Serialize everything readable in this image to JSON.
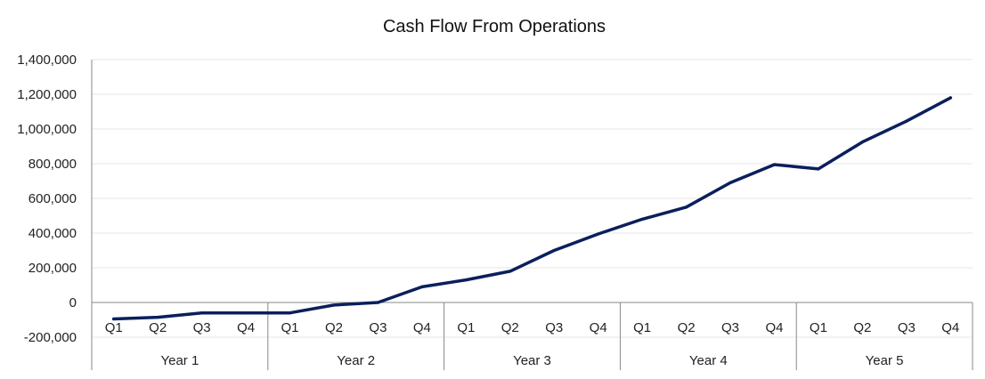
{
  "chart_data": {
    "type": "line",
    "title": "Cash Flow From Operations",
    "xlabel": "",
    "ylabel": "",
    "ylim": [
      -200000,
      1400000
    ],
    "yticks": [
      -200000,
      0,
      200000,
      400000,
      600000,
      800000,
      1000000,
      1200000,
      1400000
    ],
    "ytick_labels": [
      "-200,000",
      "0",
      "200,000",
      "400,000",
      "600,000",
      "800,000",
      "1,000,000",
      "1,200,000",
      "1,400,000"
    ],
    "groups": [
      {
        "label": "Year 1",
        "categories": [
          "Q1",
          "Q2",
          "Q3",
          "Q4"
        ]
      },
      {
        "label": "Year 2",
        "categories": [
          "Q1",
          "Q2",
          "Q3",
          "Q4"
        ]
      },
      {
        "label": "Year 3",
        "categories": [
          "Q1",
          "Q2",
          "Q3",
          "Q4"
        ]
      },
      {
        "label": "Year 4",
        "categories": [
          "Q1",
          "Q2",
          "Q3",
          "Q4"
        ]
      },
      {
        "label": "Year 5",
        "categories": [
          "Q1",
          "Q2",
          "Q3",
          "Q4"
        ]
      }
    ],
    "series": [
      {
        "color": "#0b1f5c",
        "values": [
          -95000,
          -85000,
          -60000,
          -60000,
          -60000,
          -15000,
          0,
          90000,
          130000,
          180000,
          300000,
          395000,
          480000,
          550000,
          690000,
          795000,
          770000,
          925000,
          1045000,
          1180000
        ]
      }
    ],
    "grid": true,
    "legend": "none"
  }
}
